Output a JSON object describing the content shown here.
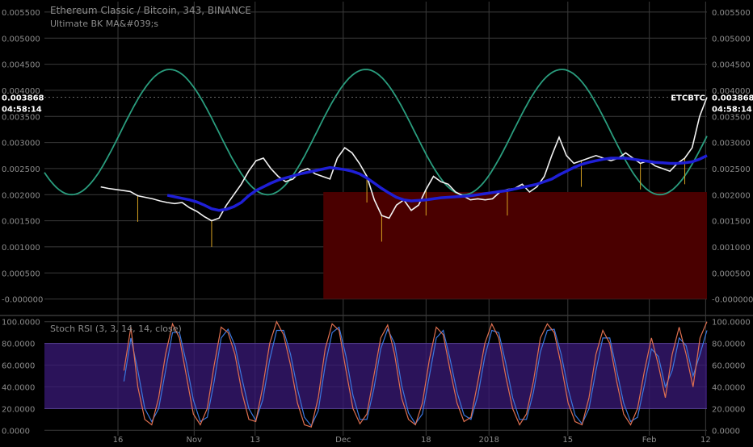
{
  "header": {
    "title": "Ethereum Classic / Bitcoin, 343, BINANCE",
    "indicator": "Ultimate BK MA&#039;s"
  },
  "price_panel": {
    "last_price": "0.003868",
    "countdown": "04:58:14",
    "symbol_label": "ETCBTC",
    "y_ticks": [
      "0.005500",
      "0.005000",
      "0.004500",
      "0.004000",
      "0.003500",
      "0.003000",
      "0.002500",
      "0.002000",
      "0.001500",
      "0.001000",
      "0.000500",
      "-0.000000"
    ]
  },
  "rsi_panel": {
    "label": "Stoch RSI (3, 3, 14, 14, close)",
    "y_ticks": [
      "100.0000",
      "80.0000",
      "60.0000",
      "40.0000",
      "20.0000",
      "0.0000"
    ],
    "band_upper": 80,
    "band_lower": 20
  },
  "x_axis": {
    "labels": [
      "16",
      "Nov",
      "13",
      "Dec",
      "18",
      "2018",
      "15",
      "Feb",
      "12"
    ]
  },
  "colors": {
    "background": "#000000",
    "grid": "#3a3a3a",
    "price_line": "#f2f2f2",
    "ma_line": "#1f1fd6",
    "cycle_line": "#2a9d7e",
    "volume_fill": "#4a0000",
    "rsi_k": "#e07050",
    "rsi_d": "#3a78e0",
    "rsi_band": "#3a1a78",
    "wick": "#d6a020",
    "axis_text": "#8c8c8c"
  },
  "chart_data": [
    {
      "type": "line",
      "title": "Ethereum Classic / Bitcoin, 343, BINANCE",
      "ylim": [
        -0.0003,
        0.0057
      ],
      "y_ticks": [
        0.0055,
        0.005,
        0.0045,
        0.004,
        0.0035,
        0.003,
        0.0025,
        0.002,
        0.0015,
        0.001,
        0.0005,
        0
      ],
      "x_tick_labels": [
        "16",
        "Nov",
        "13",
        "Dec",
        "18",
        "2018",
        "15",
        "Feb",
        "12"
      ],
      "series": [
        {
          "name": "ETCBTC",
          "values": [
            0.00215,
            0.00212,
            0.0021,
            0.00208,
            0.00206,
            0.00198,
            0.00195,
            0.00192,
            0.00188,
            0.00185,
            0.00183,
            0.00185,
            0.00175,
            0.00168,
            0.00158,
            0.0015,
            0.00155,
            0.0018,
            0.002,
            0.0022,
            0.00245,
            0.00265,
            0.0027,
            0.0025,
            0.00235,
            0.00225,
            0.0023,
            0.00245,
            0.0025,
            0.0024,
            0.00235,
            0.0023,
            0.0027,
            0.0029,
            0.0028,
            0.0026,
            0.00235,
            0.0019,
            0.0016,
            0.00155,
            0.0018,
            0.0019,
            0.0017,
            0.0018,
            0.0021,
            0.00235,
            0.00225,
            0.0022,
            0.00205,
            0.00198,
            0.0019,
            0.00192,
            0.0019,
            0.00192,
            0.00205,
            0.0021,
            0.00212,
            0.0022,
            0.00205,
            0.00215,
            0.00235,
            0.00275,
            0.0031,
            0.00275,
            0.0026,
            0.00265,
            0.0027,
            0.00275,
            0.0027,
            0.00265,
            0.0027,
            0.0028,
            0.0027,
            0.0026,
            0.00265,
            0.00255,
            0.0025,
            0.00245,
            0.0026,
            0.0027,
            0.0029,
            0.0035,
            0.003868
          ]
        },
        {
          "name": "MA",
          "values": [
            null,
            null,
            null,
            null,
            null,
            null,
            null,
            null,
            null,
            0.00199,
            0.00196,
            0.00193,
            0.0019,
            0.00186,
            0.0018,
            0.00173,
            0.0017,
            0.00172,
            0.00177,
            0.00185,
            0.00198,
            0.00208,
            0.00215,
            0.00222,
            0.00228,
            0.00232,
            0.00236,
            0.0024,
            0.00243,
            0.00246,
            0.00249,
            0.00252,
            0.0025,
            0.00248,
            0.00245,
            0.0024,
            0.00232,
            0.00222,
            0.00212,
            0.00203,
            0.00195,
            0.0019,
            0.00188,
            0.00189,
            0.0019,
            0.00192,
            0.00194,
            0.00195,
            0.00196,
            0.00197,
            0.00198,
            0.002,
            0.00202,
            0.00204,
            0.00206,
            0.00208,
            0.00211,
            0.00214,
            0.00217,
            0.0022,
            0.00225,
            0.0023,
            0.00238,
            0.00245,
            0.00252,
            0.00258,
            0.00262,
            0.00265,
            0.00268,
            0.0027,
            0.0027,
            0.0027,
            0.00268,
            0.00266,
            0.00264,
            0.00262,
            0.00261,
            0.0026,
            0.0026,
            0.00261,
            0.00263,
            0.00268,
            0.00275
          ]
        }
      ],
      "cycle": {
        "min": 0.002,
        "max": 0.0044,
        "peaks_at_x_fraction": [
          0.189,
          0.485,
          0.763
        ]
      },
      "volume_profile_start_fraction": 0.421
    },
    {
      "type": "line",
      "title": "Stoch RSI (3, 3, 14, 14, close)",
      "ylim": [
        0,
        100
      ],
      "y_ticks": [
        100,
        80,
        60,
        40,
        20,
        0
      ],
      "series": [
        {
          "name": "K",
          "values": [
            55,
            95,
            40,
            10,
            5,
            30,
            70,
            98,
            85,
            50,
            15,
            5,
            20,
            60,
            95,
            90,
            70,
            35,
            10,
            8,
            40,
            80,
            100,
            88,
            60,
            25,
            5,
            3,
            30,
            75,
            98,
            92,
            55,
            20,
            6,
            15,
            50,
            85,
            97,
            70,
            30,
            10,
            5,
            25,
            65,
            95,
            88,
            55,
            25,
            8,
            12,
            45,
            80,
            98,
            85,
            50,
            20,
            5,
            15,
            45,
            85,
            98,
            90,
            60,
            25,
            8,
            5,
            30,
            70,
            92,
            80,
            45,
            15,
            5,
            20,
            55,
            85,
            60,
            30,
            70,
            95,
            70,
            40,
            85,
            100
          ]
        },
        {
          "name": "D",
          "values": [
            45,
            85,
            55,
            20,
            8,
            20,
            55,
            90,
            90,
            62,
            28,
            8,
            12,
            45,
            85,
            93,
            78,
            48,
            20,
            9,
            28,
            65,
            92,
            92,
            70,
            38,
            12,
            4,
            18,
            60,
            90,
            95,
            68,
            32,
            10,
            10,
            38,
            75,
            93,
            80,
            42,
            16,
            6,
            15,
            50,
            85,
            92,
            65,
            35,
            14,
            10,
            32,
            68,
            92,
            90,
            62,
            30,
            10,
            10,
            35,
            72,
            92,
            93,
            70,
            38,
            14,
            6,
            20,
            55,
            85,
            85,
            55,
            25,
            8,
            12,
            42,
            75,
            68,
            40,
            55,
            85,
            78,
            50,
            70,
            92
          ]
        }
      ]
    }
  ]
}
